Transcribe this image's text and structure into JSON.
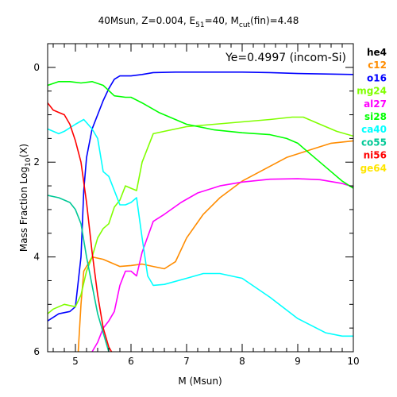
{
  "chart_data": {
    "type": "line",
    "title": {
      "prefix": "40Msun, Z=0.004, E",
      "e_sub": "51",
      "middle": "=40, M",
      "m_sub": "cut",
      "suffix": "(fin)=4.48"
    },
    "xlabel": "M (Msun)",
    "ylabel": {
      "prefix": "Mass Fraction Log",
      "sub": "10",
      "suffix": "(X)"
    },
    "annotation": "Ye=0.4997 (incom-Si)",
    "xlim": [
      4.5,
      10
    ],
    "ylim": [
      -6,
      0.5
    ],
    "x_ticks": [
      5,
      6,
      7,
      8,
      9,
      10
    ],
    "x_tick_labels": [
      "5",
      "6",
      "7",
      "8",
      "9",
      "10"
    ],
    "y_ticks": [
      0,
      -2,
      -4,
      -6
    ],
    "y_tick_labels": [
      "0",
      "2",
      "4",
      "6"
    ],
    "grid": false,
    "legend_position": "right-outside",
    "series": [
      {
        "name": "he4",
        "color": "#000000",
        "points": []
      },
      {
        "name": "c12",
        "color": "#ff8c00",
        "points": [
          [
            5.05,
            -6.0
          ],
          [
            5.1,
            -5.0
          ],
          [
            5.15,
            -4.3
          ],
          [
            5.3,
            -4.0
          ],
          [
            5.5,
            -4.05
          ],
          [
            5.8,
            -4.2
          ],
          [
            6.0,
            -4.18
          ],
          [
            6.2,
            -4.15
          ],
          [
            6.4,
            -4.2
          ],
          [
            6.6,
            -4.25
          ],
          [
            6.8,
            -4.1
          ],
          [
            7.0,
            -3.6
          ],
          [
            7.3,
            -3.1
          ],
          [
            7.6,
            -2.75
          ],
          [
            8.0,
            -2.4
          ],
          [
            8.4,
            -2.15
          ],
          [
            8.8,
            -1.9
          ],
          [
            9.2,
            -1.75
          ],
          [
            9.6,
            -1.6
          ],
          [
            10.0,
            -1.55
          ]
        ]
      },
      {
        "name": "o16",
        "color": "#0000ff",
        "points": [
          [
            4.5,
            -5.35
          ],
          [
            4.7,
            -5.2
          ],
          [
            4.9,
            -5.15
          ],
          [
            5.0,
            -5.05
          ],
          [
            5.1,
            -4.0
          ],
          [
            5.15,
            -2.6
          ],
          [
            5.2,
            -1.9
          ],
          [
            5.3,
            -1.3
          ],
          [
            5.5,
            -0.7
          ],
          [
            5.6,
            -0.45
          ],
          [
            5.7,
            -0.25
          ],
          [
            5.8,
            -0.18
          ],
          [
            6.0,
            -0.18
          ],
          [
            6.2,
            -0.15
          ],
          [
            6.4,
            -0.11
          ],
          [
            6.8,
            -0.1
          ],
          [
            7.5,
            -0.1
          ],
          [
            8.0,
            -0.1
          ],
          [
            8.5,
            -0.11
          ],
          [
            9.0,
            -0.13
          ],
          [
            9.5,
            -0.14
          ],
          [
            10.0,
            -0.15
          ]
        ]
      },
      {
        "name": "mg24",
        "color": "#80ff00",
        "points": [
          [
            4.5,
            -5.2
          ],
          [
            4.6,
            -5.1
          ],
          [
            4.8,
            -5.0
          ],
          [
            5.0,
            -5.05
          ],
          [
            5.1,
            -4.8
          ],
          [
            5.2,
            -4.3
          ],
          [
            5.3,
            -4.0
          ],
          [
            5.4,
            -3.6
          ],
          [
            5.5,
            -3.4
          ],
          [
            5.6,
            -3.3
          ],
          [
            5.7,
            -2.95
          ],
          [
            5.8,
            -2.8
          ],
          [
            5.9,
            -2.5
          ],
          [
            6.0,
            -2.55
          ],
          [
            6.1,
            -2.6
          ],
          [
            6.2,
            -2.0
          ],
          [
            6.4,
            -1.4
          ],
          [
            6.6,
            -1.35
          ],
          [
            7.0,
            -1.25
          ],
          [
            7.5,
            -1.2
          ],
          [
            8.0,
            -1.15
          ],
          [
            8.5,
            -1.1
          ],
          [
            8.9,
            -1.05
          ],
          [
            9.1,
            -1.05
          ],
          [
            9.4,
            -1.2
          ],
          [
            9.7,
            -1.35
          ],
          [
            10.0,
            -1.45
          ]
        ]
      },
      {
        "name": "al27",
        "color": "#ff00ff",
        "points": [
          [
            5.3,
            -6.0
          ],
          [
            5.4,
            -5.8
          ],
          [
            5.5,
            -5.5
          ],
          [
            5.6,
            -5.35
          ],
          [
            5.7,
            -5.15
          ],
          [
            5.8,
            -4.6
          ],
          [
            5.9,
            -4.3
          ],
          [
            6.0,
            -4.3
          ],
          [
            6.1,
            -4.4
          ],
          [
            6.2,
            -3.9
          ],
          [
            6.4,
            -3.25
          ],
          [
            6.6,
            -3.1
          ],
          [
            6.9,
            -2.85
          ],
          [
            7.2,
            -2.65
          ],
          [
            7.6,
            -2.5
          ],
          [
            8.0,
            -2.42
          ],
          [
            8.5,
            -2.36
          ],
          [
            9.0,
            -2.35
          ],
          [
            9.4,
            -2.37
          ],
          [
            9.8,
            -2.45
          ],
          [
            10.0,
            -2.52
          ]
        ]
      },
      {
        "name": "si28",
        "color": "#00ff00",
        "points": [
          [
            4.5,
            -0.38
          ],
          [
            4.7,
            -0.3
          ],
          [
            4.9,
            -0.3
          ],
          [
            5.1,
            -0.33
          ],
          [
            5.3,
            -0.3
          ],
          [
            5.5,
            -0.38
          ],
          [
            5.7,
            -0.6
          ],
          [
            5.9,
            -0.63
          ],
          [
            6.0,
            -0.63
          ],
          [
            6.2,
            -0.75
          ],
          [
            6.5,
            -0.95
          ],
          [
            7.0,
            -1.2
          ],
          [
            7.5,
            -1.32
          ],
          [
            8.0,
            -1.38
          ],
          [
            8.5,
            -1.42
          ],
          [
            8.8,
            -1.5
          ],
          [
            9.0,
            -1.6
          ],
          [
            9.3,
            -1.9
          ],
          [
            9.6,
            -2.2
          ],
          [
            9.8,
            -2.4
          ],
          [
            10.0,
            -2.55
          ]
        ]
      },
      {
        "name": "ca40",
        "color": "#00ffff",
        "points": [
          [
            4.5,
            -1.3
          ],
          [
            4.7,
            -1.4
          ],
          [
            4.8,
            -1.35
          ],
          [
            5.0,
            -1.2
          ],
          [
            5.15,
            -1.1
          ],
          [
            5.3,
            -1.3
          ],
          [
            5.4,
            -1.5
          ],
          [
            5.5,
            -2.2
          ],
          [
            5.6,
            -2.3
          ],
          [
            5.7,
            -2.6
          ],
          [
            5.8,
            -2.9
          ],
          [
            5.9,
            -2.9
          ],
          [
            6.0,
            -2.85
          ],
          [
            6.1,
            -2.75
          ],
          [
            6.2,
            -3.6
          ],
          [
            6.3,
            -4.4
          ],
          [
            6.4,
            -4.6
          ],
          [
            6.6,
            -4.58
          ],
          [
            7.0,
            -4.45
          ],
          [
            7.3,
            -4.35
          ],
          [
            7.6,
            -4.35
          ],
          [
            8.0,
            -4.45
          ],
          [
            8.5,
            -4.85
          ],
          [
            9.0,
            -5.3
          ],
          [
            9.5,
            -5.6
          ],
          [
            9.8,
            -5.67
          ],
          [
            10.0,
            -5.67
          ]
        ]
      },
      {
        "name": "co55",
        "color": "#00c896",
        "points": [
          [
            4.5,
            -2.7
          ],
          [
            4.7,
            -2.75
          ],
          [
            4.9,
            -2.85
          ],
          [
            5.0,
            -3.0
          ],
          [
            5.1,
            -3.3
          ],
          [
            5.2,
            -4.0
          ],
          [
            5.3,
            -4.6
          ],
          [
            5.4,
            -5.2
          ],
          [
            5.5,
            -5.6
          ],
          [
            5.6,
            -6.0
          ]
        ]
      },
      {
        "name": "ni56",
        "color": "#ff0000",
        "points": [
          [
            4.5,
            -0.75
          ],
          [
            4.6,
            -0.9
          ],
          [
            4.7,
            -0.95
          ],
          [
            4.8,
            -1.0
          ],
          [
            4.9,
            -1.2
          ],
          [
            5.0,
            -1.55
          ],
          [
            5.1,
            -2.0
          ],
          [
            5.2,
            -2.85
          ],
          [
            5.3,
            -3.9
          ],
          [
            5.4,
            -4.8
          ],
          [
            5.5,
            -5.5
          ],
          [
            5.6,
            -5.9
          ],
          [
            5.65,
            -6.0
          ]
        ]
      },
      {
        "name": "ge64",
        "color": "#ffe600",
        "points": []
      }
    ]
  }
}
